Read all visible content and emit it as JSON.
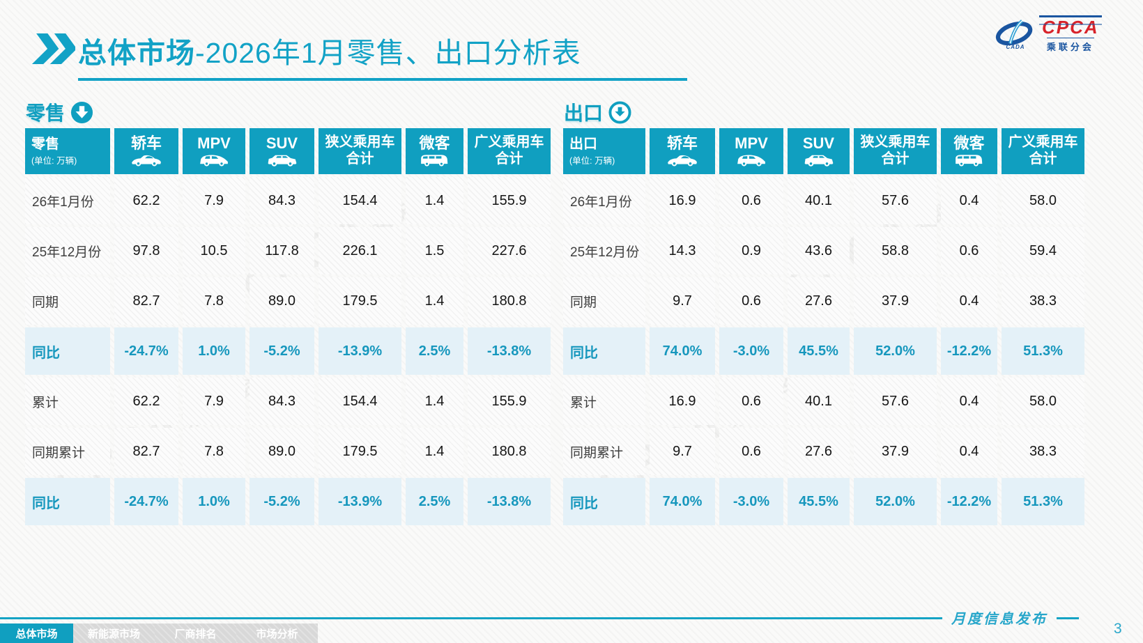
{
  "header": {
    "title_highlight": "总体市场",
    "title_rest": "-2026年1月零售、出口分析表"
  },
  "logo": {
    "cpca": "CPCA",
    "org": "乘联分会",
    "cada": "CADA"
  },
  "sections": [
    {
      "label": "零售",
      "arrow_style": "filled"
    },
    {
      "label": "出口",
      "arrow_style": "outline"
    }
  ],
  "tables": [
    {
      "name": "retail",
      "corner_label": "零售",
      "unit": "(单位: 万辆)",
      "columns": [
        {
          "label": "轿车",
          "icon": "sedan-car-icon"
        },
        {
          "label": "MPV",
          "icon": "mpv-car-icon"
        },
        {
          "label": "SUV",
          "icon": "suv-car-icon"
        },
        {
          "label": "狭义乘用车",
          "label2": "合计"
        },
        {
          "label": "微客",
          "icon": "microvan-car-icon"
        },
        {
          "label": "广义乘用车",
          "label2": "合计"
        }
      ],
      "rows": [
        {
          "label": "26年1月份",
          "values": [
            "62.2",
            "7.9",
            "84.3",
            "154.4",
            "1.4",
            "155.9"
          ],
          "highlight": false
        },
        {
          "label": "25年12月份",
          "values": [
            "97.8",
            "10.5",
            "117.8",
            "226.1",
            "1.5",
            "227.6"
          ],
          "highlight": false
        },
        {
          "label": "同期",
          "values": [
            "82.7",
            "7.8",
            "89.0",
            "179.5",
            "1.4",
            "180.8"
          ],
          "highlight": false
        },
        {
          "label": "同比",
          "values": [
            "-24.7%",
            "1.0%",
            "-5.2%",
            "-13.9%",
            "2.5%",
            "-13.8%"
          ],
          "highlight": true
        },
        {
          "label": "累计",
          "values": [
            "62.2",
            "7.9",
            "84.3",
            "154.4",
            "1.4",
            "155.9"
          ],
          "highlight": false
        },
        {
          "label": "同期累计",
          "values": [
            "82.7",
            "7.8",
            "89.0",
            "179.5",
            "1.4",
            "180.8"
          ],
          "highlight": false
        },
        {
          "label": "同比",
          "values": [
            "-24.7%",
            "1.0%",
            "-5.2%",
            "-13.9%",
            "2.5%",
            "-13.8%"
          ],
          "highlight": true
        }
      ]
    },
    {
      "name": "export",
      "corner_label": "出口",
      "unit": "(单位: 万辆)",
      "columns": [
        {
          "label": "轿车",
          "icon": "sedan-car-icon"
        },
        {
          "label": "MPV",
          "icon": "mpv-car-icon"
        },
        {
          "label": "SUV",
          "icon": "suv-car-icon"
        },
        {
          "label": "狭义乘用车",
          "label2": "合计"
        },
        {
          "label": "微客",
          "icon": "microvan-car-icon"
        },
        {
          "label": "广义乘用车",
          "label2": "合计"
        }
      ],
      "rows": [
        {
          "label": "26年1月份",
          "values": [
            "16.9",
            "0.6",
            "40.1",
            "57.6",
            "0.4",
            "58.0"
          ],
          "highlight": false
        },
        {
          "label": "25年12月份",
          "values": [
            "14.3",
            "0.9",
            "43.6",
            "58.8",
            "0.6",
            "59.4"
          ],
          "highlight": false
        },
        {
          "label": "同期",
          "values": [
            "9.7",
            "0.6",
            "27.6",
            "37.9",
            "0.4",
            "38.3"
          ],
          "highlight": false
        },
        {
          "label": "同比",
          "values": [
            "74.0%",
            "-3.0%",
            "45.5%",
            "52.0%",
            "-12.2%",
            "51.3%"
          ],
          "highlight": true
        },
        {
          "label": "累计",
          "values": [
            "16.9",
            "0.6",
            "40.1",
            "57.6",
            "0.4",
            "58.0"
          ],
          "highlight": false
        },
        {
          "label": "同期累计",
          "values": [
            "9.7",
            "0.6",
            "27.6",
            "37.9",
            "0.4",
            "38.3"
          ],
          "highlight": false
        },
        {
          "label": "同比",
          "values": [
            "74.0%",
            "-3.0%",
            "45.5%",
            "52.0%",
            "-12.2%",
            "51.3%"
          ],
          "highlight": true
        }
      ]
    }
  ],
  "watermark": {
    "big": "CPCA",
    "small": "乘联分会"
  },
  "footer": {
    "nav": [
      {
        "label": "总体市场",
        "active": true
      },
      {
        "label": "新能源市场",
        "active": false
      },
      {
        "label": "厂商排名",
        "active": false
      },
      {
        "label": "市场分析",
        "active": false
      }
    ],
    "publish_label": "月度信息发布",
    "page_number": "3"
  },
  "colors": {
    "teal": "#109fc0",
    "highlight_bg": "#e4f1f8",
    "highlight_text": "#1697bd",
    "nav_gray": "#d8d8d8",
    "logo_blue": "#1a55a0",
    "logo_red": "#d8232a"
  }
}
